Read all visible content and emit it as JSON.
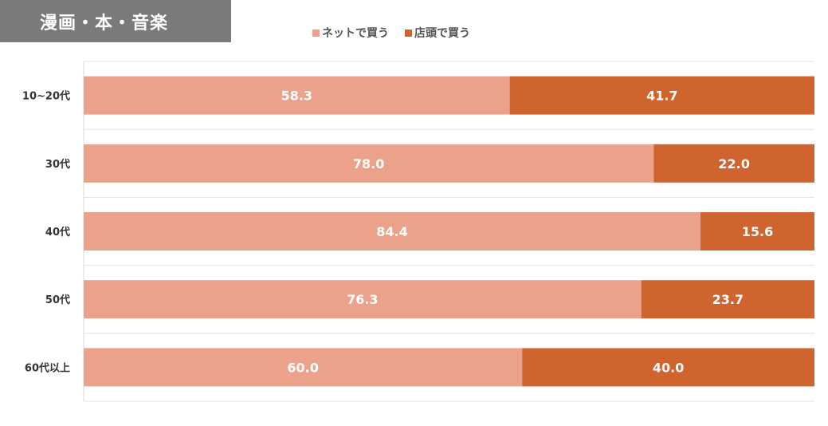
{
  "header": {
    "title": "漫画・本・音楽"
  },
  "chart_data": {
    "type": "bar",
    "orientation": "horizontal",
    "stacked": true,
    "categories": [
      "10~20代",
      "30代",
      "40代",
      "50代",
      "60代以上"
    ],
    "series": [
      {
        "name": "ネットで買う",
        "color": "#eca28a",
        "values": [
          58.3,
          78.0,
          84.4,
          76.3,
          60.0
        ],
        "labels": [
          "58.3",
          "78.0",
          "84.4",
          "76.3",
          "60.0"
        ]
      },
      {
        "name": "店頭で買う",
        "color": "#d0642e",
        "values": [
          41.7,
          22.0,
          15.6,
          23.7,
          40.0
        ],
        "labels": [
          "41.7",
          "22.0",
          "15.6",
          "23.7",
          "40.0"
        ]
      }
    ],
    "xlim": [
      0,
      100
    ],
    "grid": true,
    "legend": "top"
  }
}
